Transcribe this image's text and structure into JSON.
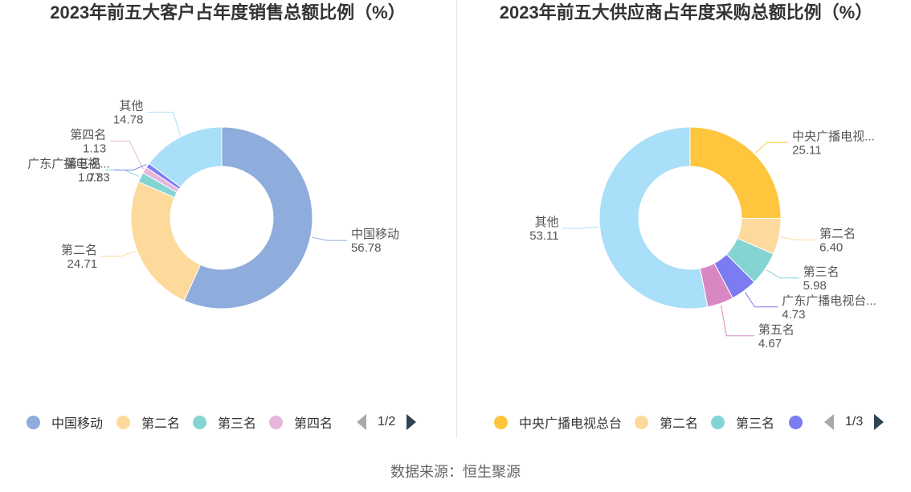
{
  "chart_data": [
    {
      "type": "donut",
      "title": "2023年前五大客户占年度销售总额比例（%）",
      "labels": [
        "中国移动",
        "第二名",
        "第三名",
        "第四名",
        "广东广播电视...",
        "其他"
      ],
      "values": [
        56.78,
        24.71,
        1.77,
        1.13,
        0.83,
        14.78
      ],
      "value_labels": [
        "56.78",
        "24.71",
        "1.77",
        "1.13",
        "0.83",
        "14.78"
      ],
      "colors": [
        "#8eacdc",
        "#fdd99b",
        "#84d4d3",
        "#e6b6dc",
        "#7b7cf2",
        "#a9dff8"
      ],
      "legend": {
        "position": "bottom",
        "items": [
          "中国移动",
          "第二名",
          "第三名",
          "第四名"
        ],
        "page": "1/2"
      }
    },
    {
      "type": "donut",
      "title": "2023年前五大供应商占年度采购总额比例（%）",
      "labels": [
        "中央广播电视...",
        "第二名",
        "第三名",
        "广东广播电视台...",
        "第五名",
        "其他"
      ],
      "values": [
        25.11,
        6.4,
        5.98,
        4.73,
        4.67,
        53.11
      ],
      "value_labels": [
        "25.11",
        "6.40",
        "5.98",
        "4.73",
        "4.67",
        "53.11"
      ],
      "colors": [
        "#ffc53d",
        "#fdd99b",
        "#84d4d3",
        "#7b7cf2",
        "#d987c2",
        "#a9dff8"
      ],
      "legend": {
        "position": "bottom",
        "items": [
          "中央广播电视总台",
          "第二名",
          "第三名",
          ""
        ],
        "page": "1/3"
      }
    }
  ],
  "source_text": "数据来源：恒生聚源"
}
